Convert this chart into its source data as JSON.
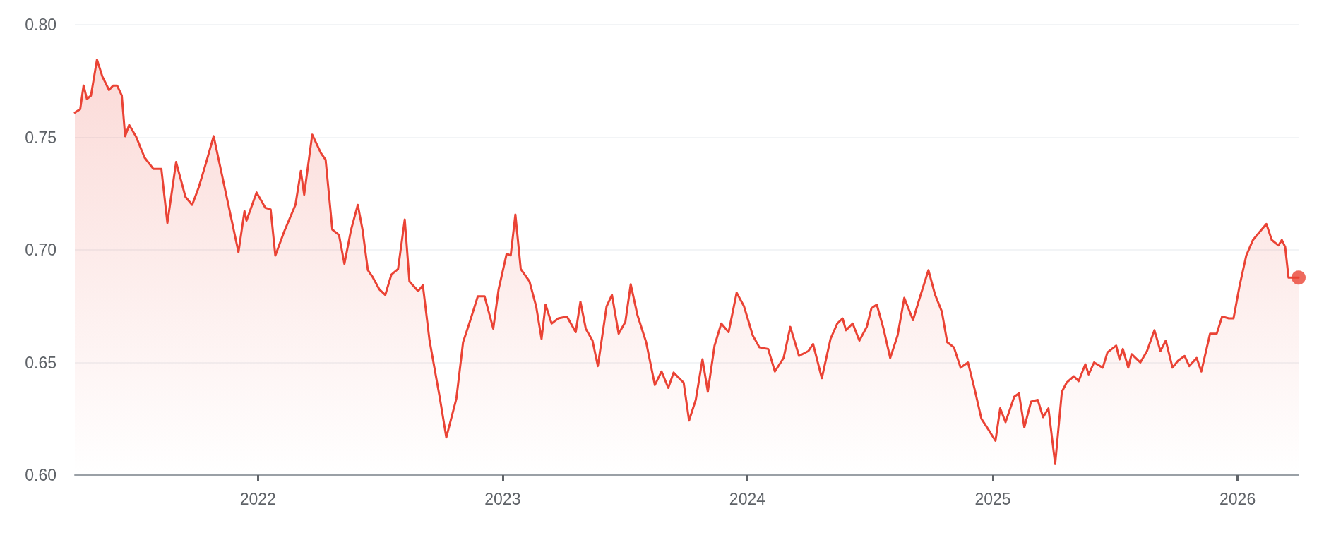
{
  "chart_data": {
    "type": "area",
    "x": [
      "2021-04-03",
      "2021-04-11",
      "2021-04-16",
      "2021-04-21",
      "2021-04-27",
      "2021-05-06",
      "2021-05-14",
      "2021-05-24",
      "2021-05-30",
      "2021-06-05",
      "2021-06-12",
      "2021-06-17",
      "2021-06-23",
      "2021-07-03",
      "2021-07-16",
      "2021-07-29",
      "2021-08-10",
      "2021-08-19",
      "2021-09-01",
      "2021-09-15",
      "2021-09-25",
      "2021-10-05",
      "2021-10-16",
      "2021-10-27",
      "2021-11-05",
      "2021-11-18",
      "2021-12-03",
      "2021-12-12",
      "2021-12-15",
      "2021-12-30",
      "2022-01-12",
      "2022-01-20",
      "2022-01-27",
      "2022-02-09",
      "2022-02-26",
      "2022-03-06",
      "2022-03-11",
      "2022-03-23",
      "2022-04-05",
      "2022-04-12",
      "2022-04-22",
      "2022-05-02",
      "2022-05-10",
      "2022-05-20",
      "2022-05-30",
      "2022-06-06",
      "2022-06-14",
      "2022-06-21",
      "2022-07-01",
      "2022-07-10",
      "2022-07-19",
      "2022-07-29",
      "2022-08-08",
      "2022-08-15",
      "2022-08-28",
      "2022-09-04",
      "2022-09-14",
      "2022-09-29",
      "2022-10-09",
      "2022-10-24",
      "2022-11-03",
      "2022-11-13",
      "2022-11-25",
      "2022-12-05",
      "2022-12-18",
      "2022-12-26",
      "2023-01-07",
      "2023-01-13",
      "2023-01-20",
      "2023-01-28",
      "2023-02-10",
      "2023-02-20",
      "2023-02-28",
      "2023-03-06",
      "2023-03-15",
      "2023-03-25",
      "2023-04-07",
      "2023-04-20",
      "2023-04-27",
      "2023-05-05",
      "2023-05-15",
      "2023-05-23",
      "2023-06-05",
      "2023-06-13",
      "2023-06-23",
      "2023-07-03",
      "2023-07-11",
      "2023-07-21",
      "2023-08-03",
      "2023-08-16",
      "2023-08-26",
      "2023-09-05",
      "2023-09-13",
      "2023-09-28",
      "2023-10-06",
      "2023-10-16",
      "2023-10-26",
      "2023-11-03",
      "2023-11-13",
      "2023-11-23",
      "2023-12-04",
      "2023-12-16",
      "2023-12-27",
      "2024-01-09",
      "2024-01-19",
      "2024-02-01",
      "2024-02-11",
      "2024-02-24",
      "2024-03-05",
      "2024-03-18",
      "2024-04-01",
      "2024-04-08",
      "2024-04-21",
      "2024-05-04",
      "2024-05-14",
      "2024-05-22",
      "2024-05-27",
      "2024-06-06",
      "2024-06-16",
      "2024-06-27",
      "2024-07-04",
      "2024-07-12",
      "2024-07-22",
      "2024-08-01",
      "2024-08-12",
      "2024-08-22",
      "2024-09-04",
      "2024-09-14",
      "2024-09-27",
      "2024-10-07",
      "2024-10-17",
      "2024-10-25",
      "2024-11-04",
      "2024-11-14",
      "2024-11-25",
      "2024-12-05",
      "2024-12-15",
      "2024-12-25",
      "2025-01-05",
      "2025-01-12",
      "2025-01-20",
      "2025-02-02",
      "2025-02-09",
      "2025-02-17",
      "2025-02-27",
      "2025-03-09",
      "2025-03-17",
      "2025-03-25",
      "2025-04-04",
      "2025-04-14",
      "2025-04-21",
      "2025-05-02",
      "2025-05-09",
      "2025-05-19",
      "2025-05-24",
      "2025-06-01",
      "2025-06-14",
      "2025-06-21",
      "2025-07-04",
      "2025-07-09",
      "2025-07-14",
      "2025-07-22",
      "2025-07-27",
      "2025-08-09",
      "2025-08-19",
      "2025-08-30",
      "2025-09-08",
      "2025-09-16",
      "2025-09-26",
      "2025-10-04",
      "2025-10-14",
      "2025-10-21",
      "2025-11-01",
      "2025-11-08",
      "2025-11-21",
      "2025-12-01",
      "2025-12-09",
      "2025-12-19",
      "2025-12-26",
      "2026-01-04",
      "2026-01-14",
      "2026-01-24",
      "2026-02-03",
      "2026-02-13",
      "2026-02-21",
      "2026-03-03",
      "2026-03-08",
      "2026-03-13",
      "2026-03-18",
      "2026-04-02"
    ],
    "series": [
      {
        "color": "#ea4335",
        "values": [
          0.761,
          0.7625,
          0.773,
          0.767,
          0.7685,
          0.7845,
          0.777,
          0.771,
          0.773,
          0.773,
          0.7685,
          0.7505,
          0.7555,
          0.7505,
          0.741,
          0.736,
          0.736,
          0.712,
          0.739,
          0.7235,
          0.72,
          0.728,
          0.739,
          0.7505,
          0.738,
          0.72,
          0.699,
          0.7172,
          0.713,
          0.7255,
          0.7187,
          0.718,
          0.6975,
          0.708,
          0.72,
          0.735,
          0.7245,
          0.7512,
          0.743,
          0.74,
          0.709,
          0.7066,
          0.6938,
          0.709,
          0.72,
          0.709,
          0.691,
          0.688,
          0.6825,
          0.68,
          0.689,
          0.6915,
          0.7135,
          0.686,
          0.6817,
          0.6843,
          0.6597,
          0.6348,
          0.6167,
          0.634,
          0.659,
          0.668,
          0.6794,
          0.6794,
          0.665,
          0.6825,
          0.6983,
          0.6975,
          0.7157,
          0.6915,
          0.686,
          0.6749,
          0.6605,
          0.6757,
          0.6673,
          0.6696,
          0.6704,
          0.6635,
          0.677,
          0.665,
          0.6597,
          0.6484,
          0.6749,
          0.68,
          0.6628,
          0.668,
          0.6847,
          0.6711,
          0.659,
          0.64,
          0.646,
          0.6387,
          0.6455,
          0.641,
          0.6242,
          0.6334,
          0.6514,
          0.637,
          0.6575,
          0.6673,
          0.6635,
          0.681,
          0.6749,
          0.662,
          0.6567,
          0.656,
          0.646,
          0.652,
          0.6658,
          0.6529,
          0.6551,
          0.6582,
          0.643,
          0.6605,
          0.6673,
          0.6696,
          0.6643,
          0.6673,
          0.6597,
          0.6658,
          0.6741,
          0.6757,
          0.665,
          0.652,
          0.662,
          0.6787,
          0.6688,
          0.6787,
          0.691,
          0.68,
          0.6726,
          0.659,
          0.6567,
          0.6477,
          0.65,
          0.638,
          0.625,
          0.6204,
          0.6152,
          0.6296,
          0.6235,
          0.6348,
          0.6363,
          0.6212,
          0.6326,
          0.6334,
          0.6257,
          0.6296,
          0.6049,
          0.637,
          0.641,
          0.6439,
          0.6417,
          0.6492,
          0.6447,
          0.65,
          0.6477,
          0.6545,
          0.6575,
          0.6514,
          0.656,
          0.6477,
          0.6537,
          0.65,
          0.6551,
          0.6643,
          0.6551,
          0.6597,
          0.6477,
          0.6507,
          0.6529,
          0.6484,
          0.652,
          0.646,
          0.6628,
          0.6628,
          0.6704,
          0.6696,
          0.6696,
          0.684,
          0.6975,
          0.7044,
          0.708,
          0.7115,
          0.7044,
          0.702,
          0.7044,
          0.7013,
          0.6877,
          0.6877
        ]
      },
      {
        "type": "scatter",
        "color": "#ea4335",
        "marker": "circle",
        "x": [
          "2026-04-02"
        ],
        "values": [
          0.6877
        ]
      }
    ],
    "xlim": [
      "2021-04-03",
      "2026-04-02"
    ],
    "xticks": [
      "2022",
      "2023",
      "2024",
      "2025",
      "2026"
    ],
    "ylim": [
      0.6,
      0.8
    ],
    "yticks": [
      {
        "value": 0.6,
        "label": "0.60"
      },
      {
        "value": 0.65,
        "label": "0.65"
      },
      {
        "value": 0.7,
        "label": "0.70"
      },
      {
        "value": 0.75,
        "label": "0.75"
      },
      {
        "value": 0.8,
        "label": "0.80"
      }
    ],
    "grid": "y",
    "marker": "none",
    "line_style": "solid"
  }
}
